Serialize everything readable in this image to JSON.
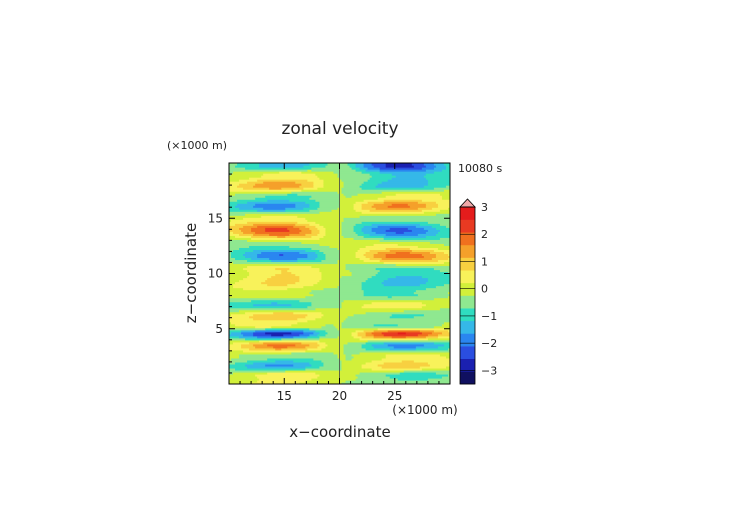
{
  "chart_data": {
    "type": "heatmap",
    "title": "zonal velocity",
    "xlabel": "x−coordinate",
    "ylabel": "z−coordinate",
    "x_unit": "(×1000 m)",
    "y_unit": "(×1000 m)",
    "time_label": "10080 s",
    "xlim": [
      10,
      30
    ],
    "ylim": [
      0,
      20
    ],
    "x_ticks": [
      15,
      20,
      25
    ],
    "y_ticks": [
      5,
      10,
      15
    ],
    "colorbar": {
      "ticks": [
        -3,
        -2,
        -1,
        0,
        1,
        2,
        3
      ],
      "levels": [
        -3.5,
        -3,
        -2.5,
        -2,
        -1.5,
        -1,
        -0.5,
        0,
        0.5,
        1,
        1.5,
        2,
        2.5,
        3,
        3.5
      ],
      "colors": [
        "#101060",
        "#1a20b0",
        "#2a4ee0",
        "#2a86f0",
        "#35b8e8",
        "#30dcc0",
        "#8fe890",
        "#d2f03a",
        "#f8f25a",
        "#f8d040",
        "#f5a02a",
        "#f0701e",
        "#e83a22",
        "#e41c1c",
        "#f0a8a8"
      ],
      "extend": "max"
    },
    "description_layers": [
      {
        "z": 19.8,
        "left": -1.5,
        "right": -2.5
      },
      {
        "z": 19.0,
        "left": 0.6,
        "right": -1.0
      },
      {
        "z": 18.0,
        "left": 2.2,
        "right": -1.6
      },
      {
        "z": 17.0,
        "left": -0.8,
        "right": 0.8
      },
      {
        "z": 16.2,
        "left": -2.0,
        "right": 2.3
      },
      {
        "z": 15.0,
        "left": 1.0,
        "right": -0.6
      },
      {
        "z": 14.0,
        "left": 2.5,
        "right": -2.0
      },
      {
        "z": 12.6,
        "left": -0.3,
        "right": 0.4
      },
      {
        "z": 11.6,
        "left": -1.9,
        "right": 2.2
      },
      {
        "z": 10.4,
        "left": 0.8,
        "right": -0.5
      },
      {
        "z": 9.2,
        "left": 1.4,
        "right": -1.5
      },
      {
        "z": 8.2,
        "left": 0.2,
        "right": -0.6
      },
      {
        "z": 7.2,
        "left": -1.3,
        "right": 1.0
      },
      {
        "z": 6.2,
        "left": 1.7,
        "right": -0.8
      },
      {
        "z": 5.3,
        "left": 0.6,
        "right": -0.5
      },
      {
        "z": 4.6,
        "left": -3.0,
        "right": 3.3
      },
      {
        "z": 3.5,
        "left": 2.4,
        "right": -1.9
      },
      {
        "z": 2.5,
        "left": -0.4,
        "right": 0.6
      },
      {
        "z": 1.7,
        "left": -1.9,
        "right": 1.6
      },
      {
        "z": 0.8,
        "left": 0.9,
        "right": -0.7
      }
    ]
  }
}
